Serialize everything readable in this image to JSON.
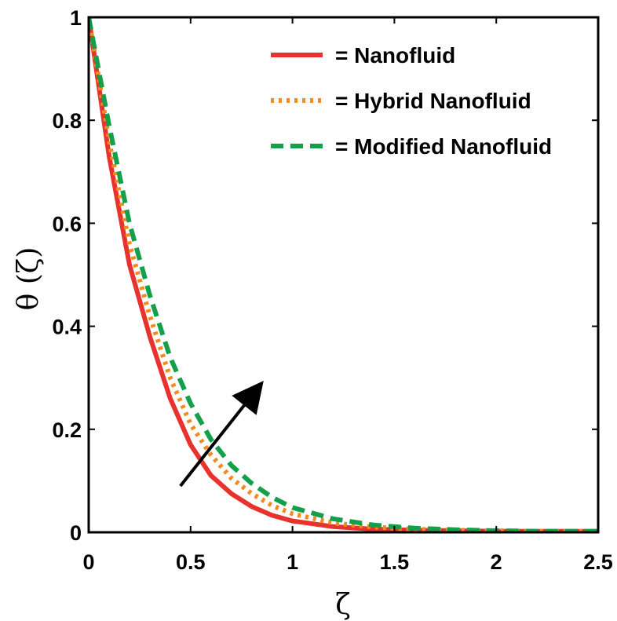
{
  "chart_data": {
    "type": "line",
    "title": "",
    "xlabel": "ζ",
    "ylabel": "θ (ζ)",
    "xlim": [
      0,
      2.5
    ],
    "ylim": [
      0,
      1
    ],
    "xticks": [
      "0",
      "0.5",
      "1",
      "1.5",
      "2",
      "2.5"
    ],
    "yticks": [
      "0",
      "0.2",
      "0.4",
      "0.6",
      "0.8",
      "1"
    ],
    "grid": false,
    "legend_position": "top-right",
    "series": [
      {
        "name": "= Nanofluid",
        "color": "#e8322d",
        "style": "solid",
        "x": [
          0,
          0.1,
          0.2,
          0.3,
          0.4,
          0.5,
          0.6,
          0.7,
          0.8,
          0.9,
          1.0,
          1.2,
          1.4,
          1.6,
          1.8,
          2.0,
          2.2,
          2.5
        ],
        "y": [
          1.0,
          0.73,
          0.52,
          0.38,
          0.26,
          0.17,
          0.11,
          0.075,
          0.05,
          0.033,
          0.022,
          0.011,
          0.006,
          0.004,
          0.003,
          0.002,
          0.002,
          0.002
        ]
      },
      {
        "name": "= Hybrid Nanofluid",
        "color": "#f28a1e",
        "style": "dotted",
        "x": [
          0,
          0.1,
          0.2,
          0.3,
          0.4,
          0.5,
          0.6,
          0.7,
          0.8,
          0.9,
          1.0,
          1.2,
          1.4,
          1.6,
          1.8,
          2.0,
          2.2,
          2.5
        ],
        "y": [
          1.0,
          0.76,
          0.56,
          0.42,
          0.3,
          0.21,
          0.15,
          0.105,
          0.075,
          0.052,
          0.036,
          0.018,
          0.01,
          0.006,
          0.004,
          0.003,
          0.002,
          0.002
        ]
      },
      {
        "name": "= Modified Nanofluid",
        "color": "#14a04a",
        "style": "dashed",
        "x": [
          0,
          0.1,
          0.2,
          0.3,
          0.4,
          0.5,
          0.6,
          0.7,
          0.8,
          0.9,
          1.0,
          1.2,
          1.4,
          1.6,
          1.8,
          2.0,
          2.2,
          2.5
        ],
        "y": [
          1.0,
          0.79,
          0.6,
          0.46,
          0.34,
          0.25,
          0.18,
          0.13,
          0.095,
          0.068,
          0.048,
          0.026,
          0.014,
          0.008,
          0.005,
          0.003,
          0.002,
          0.002
        ]
      }
    ],
    "annotations": [
      {
        "type": "arrow",
        "from": [
          0.45,
          0.09
        ],
        "to": [
          0.82,
          0.275
        ],
        "color": "#000000"
      }
    ]
  }
}
